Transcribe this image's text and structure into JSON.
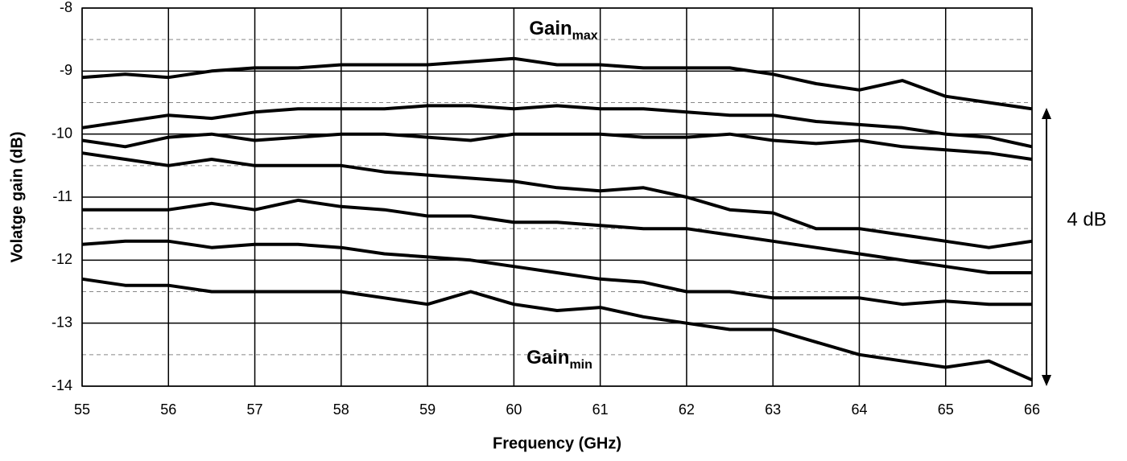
{
  "chart_data": {
    "type": "line",
    "x_label": "Frequency (GHz)",
    "y_label": "Volatge gain (dB)",
    "x": [
      55,
      55.5,
      56,
      56.5,
      57,
      57.5,
      58,
      58.5,
      59,
      59.5,
      60,
      60.5,
      61,
      61.5,
      62,
      62.5,
      63,
      63.5,
      64,
      64.5,
      65,
      65.5,
      66
    ],
    "series": [
      {
        "color": "#000000",
        "values": [
          -9.1,
          -9.05,
          -9.1,
          -9.0,
          -8.95,
          -8.95,
          -8.9,
          -8.9,
          -8.9,
          -8.85,
          -8.8,
          -8.9,
          -8.9,
          -8.95,
          -8.95,
          -8.95,
          -9.05,
          -9.2,
          -9.3,
          -9.15,
          -9.4,
          -9.5,
          -9.6
        ]
      },
      {
        "color": "#000000",
        "values": [
          -9.9,
          -9.8,
          -9.7,
          -9.75,
          -9.65,
          -9.6,
          -9.6,
          -9.6,
          -9.55,
          -9.55,
          -9.6,
          -9.55,
          -9.6,
          -9.6,
          -9.65,
          -9.7,
          -9.7,
          -9.8,
          -9.85,
          -9.9,
          -10.0,
          -10.05,
          -10.2
        ]
      },
      {
        "color": "#000000",
        "values": [
          -10.1,
          -10.2,
          -10.05,
          -10.0,
          -10.1,
          -10.05,
          -10.0,
          -10.0,
          -10.05,
          -10.1,
          -10.0,
          -10.0,
          -10.0,
          -10.05,
          -10.05,
          -10.0,
          -10.1,
          -10.15,
          -10.1,
          -10.2,
          -10.25,
          -10.3,
          -10.4
        ]
      },
      {
        "color": "#000000",
        "values": [
          -10.3,
          -10.4,
          -10.5,
          -10.4,
          -10.5,
          -10.5,
          -10.5,
          -10.6,
          -10.65,
          -10.7,
          -10.75,
          -10.85,
          -10.9,
          -10.85,
          -11.0,
          -11.2,
          -11.25,
          -11.5,
          -11.5,
          -11.6,
          -11.7,
          -11.8,
          -11.7
        ]
      },
      {
        "color": "#000000",
        "values": [
          -11.2,
          -11.2,
          -11.2,
          -11.1,
          -11.2,
          -11.05,
          -11.15,
          -11.2,
          -11.3,
          -11.3,
          -11.4,
          -11.4,
          -11.45,
          -11.5,
          -11.5,
          -11.6,
          -11.7,
          -11.8,
          -11.9,
          -12.0,
          -12.1,
          -12.2,
          -12.2
        ]
      },
      {
        "color": "#000000",
        "values": [
          -11.75,
          -11.7,
          -11.7,
          -11.8,
          -11.75,
          -11.75,
          -11.8,
          -11.9,
          -11.95,
          -12.0,
          -12.1,
          -12.2,
          -12.3,
          -12.35,
          -12.5,
          -12.5,
          -12.6,
          -12.6,
          -12.6,
          -12.7,
          -12.65,
          -12.7,
          -12.7
        ]
      },
      {
        "color": "#000000",
        "values": [
          -12.3,
          -12.4,
          -12.4,
          -12.5,
          -12.5,
          -12.5,
          -12.5,
          -12.6,
          -12.7,
          -12.5,
          -12.7,
          -12.8,
          -12.75,
          -12.9,
          -13.0,
          -13.1,
          -13.1,
          -13.3,
          -13.5,
          -13.6,
          -13.7,
          -13.6,
          -13.9
        ]
      }
    ],
    "xlim": [
      55,
      66
    ],
    "xticks": [
      55,
      56,
      57,
      58,
      59,
      60,
      61,
      62,
      63,
      64,
      65,
      66
    ],
    "ylim": [
      -14,
      -8
    ],
    "yticks": [
      -14,
      -13,
      -12,
      -11,
      -10,
      -9,
      -8
    ],
    "minor_yticks": [
      -13.5,
      -12.5,
      -11.5,
      -10.5,
      -9.5,
      -8.5
    ],
    "grid": true,
    "annotations": [
      {
        "text": "Gain",
        "sub": "max"
      },
      {
        "text": "Gain",
        "sub": "min"
      },
      {
        "text": "4 dB"
      }
    ]
  }
}
